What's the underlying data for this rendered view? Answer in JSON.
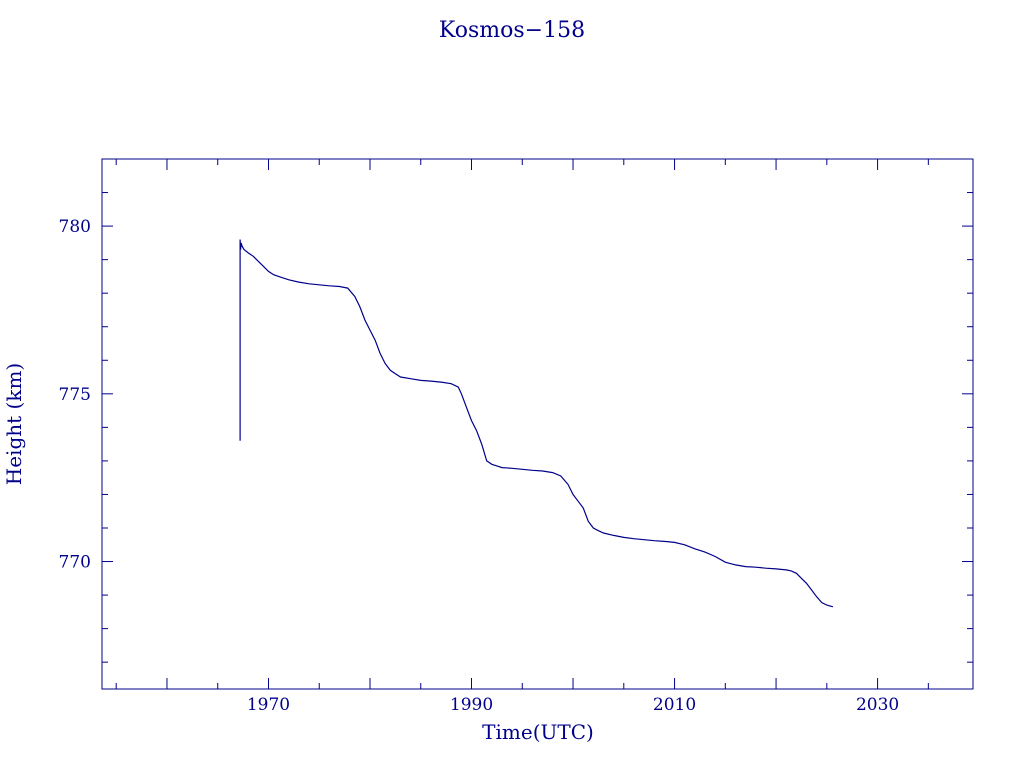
{
  "chart_data": {
    "type": "line",
    "title": "Kosmos−158",
    "xlabel": "Time(UTC)",
    "ylabel": "Height (km)",
    "xlim": [
      1953.6,
      2039.4
    ],
    "ylim": [
      766.2,
      782.0
    ],
    "x_ticks": [
      1970,
      1990,
      2010,
      2030
    ],
    "y_ticks": [
      770,
      775,
      780
    ],
    "grid": false,
    "colors": {
      "line": "#00008b",
      "axes": "#00008b",
      "text": "#00008b"
    },
    "series": [
      {
        "x": [
          1967.2,
          1967.2,
          1967.25,
          1967.3,
          1967.4,
          1967.6,
          1968.0,
          1968.5,
          1969.0,
          1969.5,
          1970.0,
          1970.5,
          1971.0,
          1972.0,
          1973.0,
          1974.0,
          1975.0,
          1976.0,
          1977.0,
          1977.8,
          1978.5,
          1979.0,
          1979.5,
          1980.0,
          1980.5,
          1981.0,
          1981.5,
          1982.0,
          1982.5,
          1983.0,
          1984.0,
          1985.0,
          1986.0,
          1987.0,
          1988.0,
          1988.7,
          1989.0,
          1989.5,
          1990.0,
          1990.5,
          1991.0,
          1991.5,
          1992.0,
          1992.5,
          1993.0,
          1994.0,
          1995.0,
          1996.0,
          1997.0,
          1998.0,
          1998.8,
          1999.5,
          2000.0,
          2000.5,
          2001.0,
          2001.5,
          2002.0,
          2002.5,
          2003.0,
          2004.0,
          2005.0,
          2006.0,
          2007.0,
          2008.0,
          2009.0,
          2010.0,
          2011.0,
          2012.0,
          2013.0,
          2014.0,
          2015.0,
          2016.0,
          2017.0,
          2018.0,
          2019.0,
          2020.0,
          2021.0,
          2021.5,
          2022.0,
          2022.5,
          2023.0,
          2023.5,
          2024.0,
          2024.5,
          2025.0,
          2025.6
        ],
        "y": [
          773.6,
          779.6,
          779.3,
          779.5,
          779.4,
          779.3,
          779.2,
          779.1,
          778.95,
          778.8,
          778.65,
          778.55,
          778.5,
          778.4,
          778.33,
          778.28,
          778.25,
          778.22,
          778.2,
          778.15,
          777.9,
          777.6,
          777.2,
          776.9,
          776.6,
          776.2,
          775.9,
          775.7,
          775.6,
          775.5,
          775.45,
          775.4,
          775.38,
          775.35,
          775.3,
          775.2,
          775.0,
          774.6,
          774.2,
          773.9,
          773.5,
          773.0,
          772.9,
          772.85,
          772.8,
          772.78,
          772.75,
          772.72,
          772.7,
          772.65,
          772.55,
          772.3,
          772.0,
          771.8,
          771.6,
          771.2,
          771.0,
          770.92,
          770.85,
          770.78,
          770.72,
          770.68,
          770.65,
          770.62,
          770.6,
          770.57,
          770.5,
          770.38,
          770.28,
          770.15,
          769.98,
          769.9,
          769.85,
          769.83,
          769.8,
          769.78,
          769.75,
          769.72,
          769.65,
          769.5,
          769.35,
          769.15,
          768.95,
          768.78,
          768.7,
          768.65
        ]
      }
    ]
  }
}
